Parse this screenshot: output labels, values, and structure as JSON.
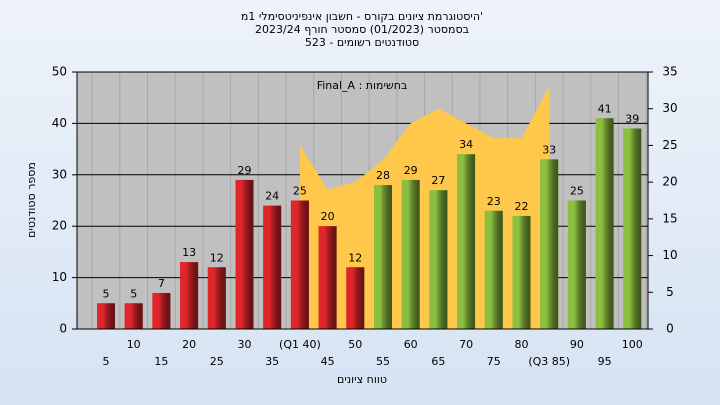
{
  "chart_data": {
    "type": "bar",
    "title": "היסטוגרמת ציונים בקורס - חשבון אינפיניטסימלי 1מ'",
    "subtitle": [
      "בסמסטר  (01/2023)  סמסטר חורף  2023/24",
      "523 - סטודנטים רשומים"
    ],
    "x_label": "טווח ציונים",
    "y_label": "מספר סטודנטים",
    "categories": [
      "5",
      "10",
      "15",
      "20",
      "25",
      "30",
      "35",
      "(Q1 40)",
      "45",
      "50",
      "55",
      "60",
      "65",
      "70",
      "75",
      "80",
      "(Q3 85)",
      "90",
      "95",
      "100"
    ],
    "values": [
      5,
      5,
      7,
      13,
      12,
      29,
      24,
      25,
      20,
      12,
      28,
      29,
      27,
      34,
      23,
      22,
      33,
      25,
      41,
      39
    ],
    "colors": [
      "#e0262b",
      "#e0262b",
      "#e0262b",
      "#e0262b",
      "#e0262b",
      "#e0262b",
      "#e0262b",
      "#e0262b",
      "#e0262b",
      "#e0262b",
      "#8cbf3f",
      "#8cbf3f",
      "#8cbf3f",
      "#8cbf3f",
      "#8cbf3f",
      "#8cbf3f",
      "#8cbf3f",
      "#8cbf3f",
      "#8cbf3f",
      "#8cbf3f"
    ],
    "area": {
      "name": "Final_A : בחשימות",
      "color": "#ffc84a",
      "axis": "y2",
      "values": [
        null,
        null,
        null,
        null,
        null,
        null,
        null,
        25,
        19,
        20,
        23,
        28,
        30,
        28,
        26,
        26,
        33,
        null,
        null,
        null
      ]
    },
    "ylim": [
      0,
      50
    ],
    "yticks": [
      0,
      10,
      20,
      30,
      40,
      50
    ],
    "y2lim": [
      0,
      35
    ],
    "y2ticks": [
      0,
      5,
      10,
      15,
      20,
      25,
      30,
      35
    ],
    "grid": true
  }
}
